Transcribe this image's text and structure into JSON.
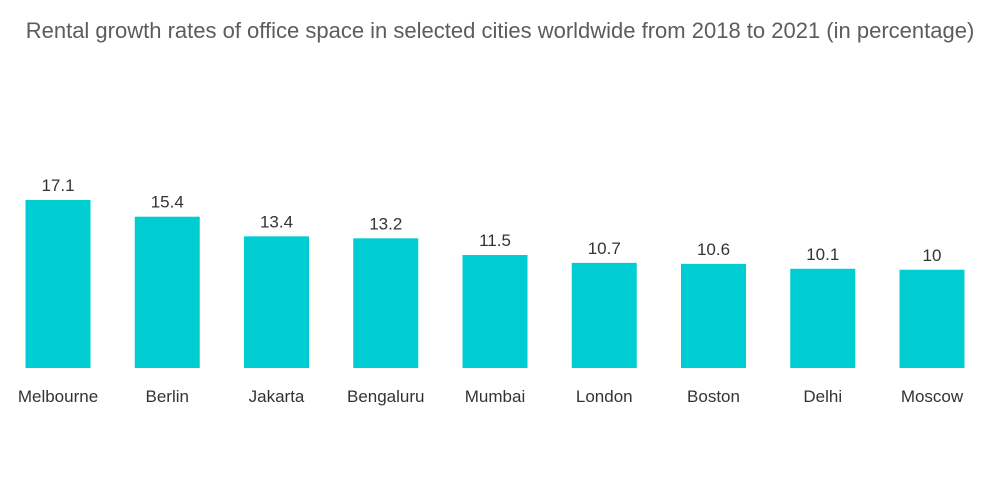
{
  "chart_data": {
    "type": "bar",
    "title": "Rental growth rates of office space in selected cities worldwide from 2018 to 2021 (in percentage)",
    "categories": [
      "Melbourne",
      "Berlin",
      "Jakarta",
      "Bengaluru",
      "Mumbai",
      "London",
      "Boston",
      "Delhi",
      "Moscow"
    ],
    "values": [
      17.1,
      15.4,
      13.4,
      13.2,
      11.5,
      10.7,
      10.6,
      10.1,
      10
    ],
    "value_labels": [
      "17.1",
      "15.4",
      "13.4",
      "13.2",
      "11.5",
      "10.7",
      "10.6",
      "10.1",
      "10"
    ],
    "xlabel": "",
    "ylabel": "",
    "ylim": [
      0,
      17.1
    ],
    "grid": false,
    "legend": "none",
    "bar_color": "#00cdd2"
  }
}
